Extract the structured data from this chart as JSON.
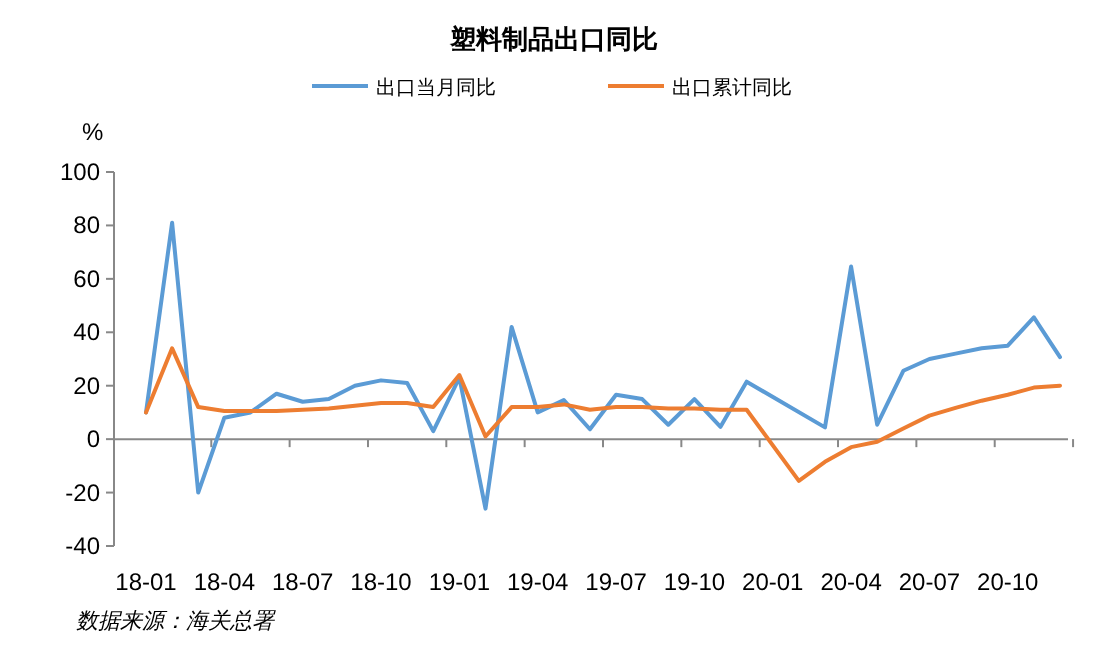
{
  "chart_data": {
    "type": "line",
    "title": "塑料制品出口同比",
    "ylabel": "%",
    "categories": [
      "18-01",
      null,
      null,
      "18-04",
      null,
      null,
      "18-07",
      null,
      null,
      "18-10",
      null,
      null,
      "19-01",
      null,
      null,
      "19-04",
      null,
      null,
      "19-07",
      null,
      null,
      "19-10",
      null,
      null,
      "20-01",
      null,
      null,
      "20-04",
      null,
      null,
      "20-07",
      null,
      null,
      "20-10",
      null,
      null
    ],
    "series": [
      {
        "name": "出口当月同比",
        "color": "#5b9bd5",
        "values": [
          10,
          81,
          -20,
          8,
          10,
          17,
          14,
          15,
          20,
          22,
          21,
          3,
          23,
          -26,
          42,
          10,
          14.6,
          3.7,
          16.6,
          15,
          5.4,
          15,
          4.6,
          21.5,
          null,
          null,
          4.4,
          64.6,
          5.4,
          25.6,
          30,
          32,
          34,
          35,
          45.6,
          30.7
        ]
      },
      {
        "name": "出口累计同比",
        "color": "#ed7d31",
        "values": [
          10,
          34,
          12,
          10.5,
          10.5,
          10.5,
          11,
          11.5,
          12.5,
          13.5,
          13.5,
          12,
          24,
          1,
          12,
          12,
          13,
          11,
          12,
          12,
          11.5,
          11.5,
          11,
          11,
          null,
          -15.6,
          -8.5,
          -3,
          -1,
          4,
          8.8,
          11.7,
          14.4,
          16.6,
          19.3,
          20
        ]
      }
    ],
    "ylim": [
      -40,
      100
    ],
    "yticks": [
      -40,
      -20,
      0,
      20,
      40,
      60,
      80,
      100
    ],
    "legend": "top",
    "marker": "none",
    "line_style": "solid",
    "annotations": [
      "数据来源：海关总署"
    ]
  }
}
